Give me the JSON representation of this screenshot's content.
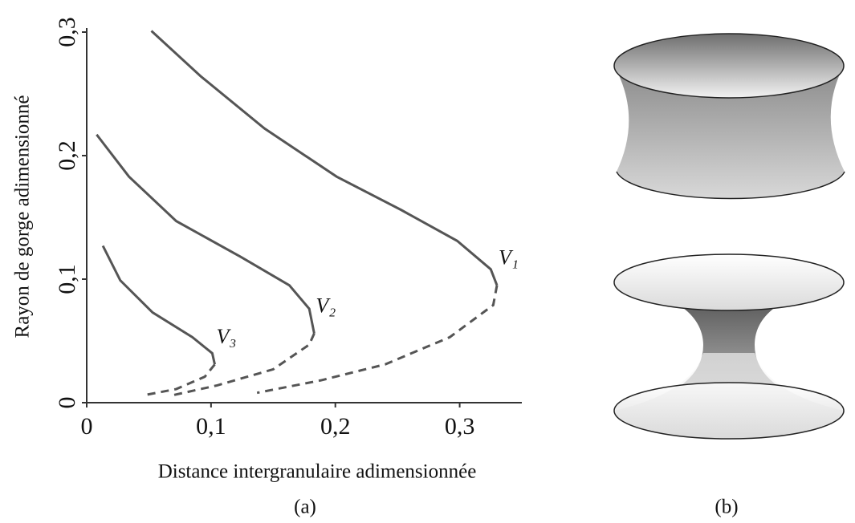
{
  "chart_data": {
    "type": "line",
    "xlabel": "Distance intergranulaire adimensionnée",
    "ylabel": "Rayon de gorge adimensionné",
    "caption": "(a)",
    "xlim": [
      0,
      0.35
    ],
    "ylim": [
      0,
      0.3
    ],
    "xticks": [
      0,
      {
        "value": 0.1,
        "label": "0,1"
      },
      {
        "value": 0.2,
        "label": "0,2"
      },
      {
        "value": 0.3,
        "label": "0,3"
      }
    ],
    "yticks": [
      0,
      {
        "value": 0.1,
        "label": "0,1"
      },
      {
        "value": 0.2,
        "label": "0,2"
      },
      {
        "value": 0.3,
        "label": "0,3"
      }
    ],
    "series": [
      {
        "name": "V₁",
        "color": "#555555",
        "branches": [
          {
            "dashed": false,
            "x": [
              0.052,
              0.092,
              0.143,
              0.201,
              0.253,
              0.298,
              0.325,
              0.33
            ],
            "values": [
              0.301,
              0.264,
              0.222,
              0.183,
              0.156,
              0.131,
              0.108,
              0.095
            ]
          },
          {
            "dashed": true,
            "x": [
              0.33,
              0.327,
              0.292,
              0.24,
              0.188,
              0.137
            ],
            "values": [
              0.095,
              0.079,
              0.053,
              0.031,
              0.018,
              0.008
            ]
          }
        ]
      },
      {
        "name": "V₂",
        "color": "#555555",
        "branches": [
          {
            "dashed": false,
            "x": [
              0.008,
              0.034,
              0.072,
              0.124,
              0.163,
              0.179,
              0.183
            ],
            "values": [
              0.217,
              0.183,
              0.147,
              0.118,
              0.095,
              0.076,
              0.056
            ]
          },
          {
            "dashed": true,
            "x": [
              0.183,
              0.179,
              0.15,
              0.105,
              0.069
            ],
            "values": [
              0.056,
              0.047,
              0.027,
              0.014,
              0.006
            ]
          }
        ]
      },
      {
        "name": "V₃",
        "color": "#555555",
        "branches": [
          {
            "dashed": false,
            "x": [
              0.013,
              0.027,
              0.053,
              0.085,
              0.101,
              0.103
            ],
            "values": [
              0.127,
              0.099,
              0.073,
              0.053,
              0.04,
              0.031
            ]
          },
          {
            "dashed": true,
            "x": [
              0.103,
              0.095,
              0.072,
              0.046
            ],
            "values": [
              0.031,
              0.021,
              0.011,
              0.006
            ]
          }
        ]
      }
    ]
  },
  "panel_b": {
    "caption": "(b)"
  }
}
